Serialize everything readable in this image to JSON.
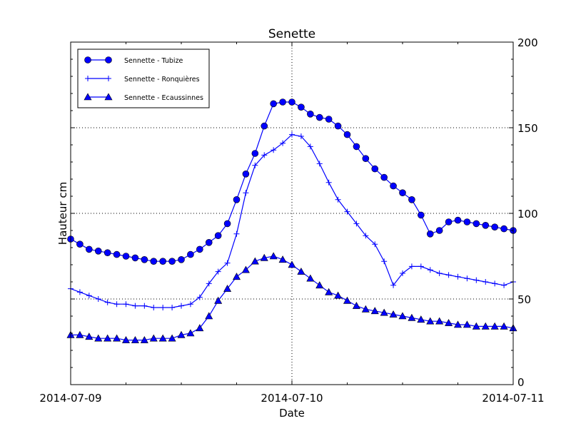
{
  "chart_data": {
    "type": "line",
    "title": "Senette",
    "xlabel": "Date",
    "ylabel": "Hauteur cm",
    "ylim": [
      0,
      200
    ],
    "yticks": [
      "0",
      "50",
      "100",
      "150",
      "200"
    ],
    "ytick_values": [
      0,
      50,
      100,
      150,
      200
    ],
    "ytick_side": "right",
    "xlim": [
      "2014-07-09 00:00",
      "2014-07-11 00:00"
    ],
    "xticks": [
      "2014-07-09",
      "2014-07-10",
      "2014-07-11"
    ],
    "x_step": "1 hour",
    "grid": true,
    "legend_placement": "top-left",
    "color": "#0000ff",
    "series": [
      {
        "name": "Sennette - Tubize",
        "marker": "circle",
        "values": [
          85,
          82,
          79,
          78,
          77,
          76,
          75,
          74,
          73,
          72,
          72,
          72,
          73,
          76,
          79,
          83,
          87,
          94,
          108,
          123,
          135,
          151,
          164,
          165,
          165,
          162,
          158,
          156,
          155,
          151,
          146,
          139,
          132,
          126,
          121,
          116,
          112,
          108,
          99,
          88,
          90,
          95,
          96,
          95,
          94,
          93,
          92,
          91,
          90
        ]
      },
      {
        "name": "Sennette - Ronquières",
        "marker": "plus",
        "values": [
          56,
          54,
          52,
          50,
          48,
          47,
          47,
          46,
          46,
          45,
          45,
          45,
          46,
          47,
          51,
          59,
          66,
          71,
          88,
          112,
          128,
          134,
          137,
          141,
          146,
          145,
          139,
          129,
          118,
          108,
          101,
          94,
          87,
          82,
          72,
          58,
          65,
          69,
          69,
          67,
          65,
          64,
          63,
          62,
          61,
          60,
          59,
          58,
          60
        ]
      },
      {
        "name": "Sennette - Ecaussinnes",
        "marker": "triangle",
        "values": [
          29,
          29,
          28,
          27,
          27,
          27,
          26,
          26,
          26,
          27,
          27,
          27,
          29,
          30,
          33,
          40,
          49,
          56,
          63,
          67,
          72,
          74,
          75,
          73,
          70,
          66,
          62,
          58,
          54,
          52,
          49,
          46,
          44,
          43,
          42,
          41,
          40,
          39,
          38,
          37,
          37,
          36,
          35,
          35,
          34,
          34,
          34,
          34,
          33
        ]
      }
    ]
  }
}
